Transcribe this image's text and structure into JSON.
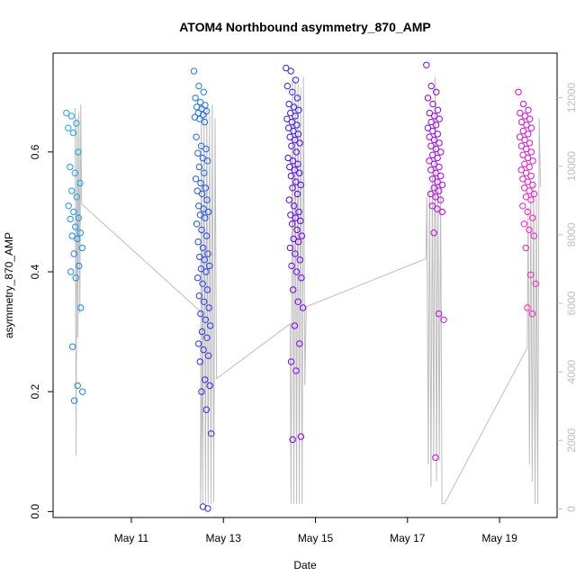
{
  "chart_data": {
    "type": "scatter",
    "title": "ATOM4 Northbound asymmetry_870_AMP",
    "xlabel": "Date",
    "ylabel": "asymmetry_870_AMP",
    "x_ticks": [
      "May 11",
      "May 13",
      "May 15",
      "May 17",
      "May 19"
    ],
    "x_tick_days": [
      11,
      13,
      15,
      17,
      19
    ],
    "xlim_days": [
      9.3,
      20.25
    ],
    "ylim": [
      -0.01,
      0.765
    ],
    "y_ticks": [
      0.0,
      0.2,
      0.4,
      0.6
    ],
    "y2_ticks": [
      0,
      2000,
      4000,
      6000,
      8000,
      10000,
      12000
    ],
    "y2lim": [
      -250,
      13300
    ],
    "colors": {
      "secondary_line": "#bdbdbd",
      "point_gradient": [
        "#1ba8ee",
        "#1c4fee",
        "#4d00ee",
        "#b400e8",
        "#ff20c0"
      ]
    },
    "series": [
      {
        "values": [
          {
            "date": "2024-05-09",
            "day": 9.78,
            "values": [
              0.665,
              0.66,
              0.648,
              0.64,
              0.632,
              0.6,
              0.575,
              0.565,
              0.548,
              0.535,
              0.525,
              0.51,
              0.5,
              0.49,
              0.488,
              0.475,
              0.465,
              0.46,
              0.455,
              0.44,
              0.43,
              0.41,
              0.4,
              0.39,
              0.34,
              0.275,
              0.21,
              0.2,
              0.185
            ]
          },
          {
            "date": "2024-05-12",
            "day": 12.55,
            "values": [
              0.735,
              0.71,
              0.7,
              0.69,
              0.683,
              0.678,
              0.675,
              0.672,
              0.668,
              0.665,
              0.662,
              0.658,
              0.655,
              0.65,
              0.625,
              0.61,
              0.605,
              0.598,
              0.59,
              0.585,
              0.575,
              0.565,
              0.555,
              0.548,
              0.54,
              0.535,
              0.53,
              0.52,
              0.51,
              0.505,
              0.5,
              0.495,
              0.49,
              0.48,
              0.47,
              0.46,
              0.45,
              0.44,
              0.43,
              0.425,
              0.42,
              0.41,
              0.405,
              0.4,
              0.39,
              0.38,
              0.37,
              0.36,
              0.35,
              0.34,
              0.33,
              0.32,
              0.31,
              0.3,
              0.29,
              0.28,
              0.27,
              0.26,
              0.25,
              0.22,
              0.21,
              0.2,
              0.17,
              0.13,
              0.008,
              0.005
            ]
          },
          {
            "date": "2024-05-14",
            "day": 14.55,
            "values": [
              0.74,
              0.735,
              0.72,
              0.71,
              0.7,
              0.69,
              0.68,
              0.675,
              0.67,
              0.665,
              0.66,
              0.655,
              0.65,
              0.645,
              0.64,
              0.635,
              0.63,
              0.625,
              0.62,
              0.615,
              0.61,
              0.6,
              0.59,
              0.585,
              0.58,
              0.575,
              0.57,
              0.565,
              0.56,
              0.55,
              0.545,
              0.54,
              0.53,
              0.52,
              0.51,
              0.5,
              0.495,
              0.49,
              0.485,
              0.48,
              0.47,
              0.46,
              0.455,
              0.45,
              0.44,
              0.43,
              0.42,
              0.41,
              0.4,
              0.39,
              0.37,
              0.35,
              0.34,
              0.31,
              0.28,
              0.25,
              0.235,
              0.125,
              0.12
            ]
          },
          {
            "date": "2024-05-17",
            "day": 17.6,
            "values": [
              0.745,
              0.71,
              0.7,
              0.69,
              0.68,
              0.67,
              0.665,
              0.66,
              0.655,
              0.65,
              0.645,
              0.64,
              0.635,
              0.63,
              0.625,
              0.62,
              0.615,
              0.61,
              0.605,
              0.6,
              0.595,
              0.59,
              0.585,
              0.58,
              0.575,
              0.57,
              0.565,
              0.56,
              0.555,
              0.55,
              0.545,
              0.54,
              0.535,
              0.53,
              0.525,
              0.52,
              0.51,
              0.505,
              0.5,
              0.465,
              0.33,
              0.32,
              0.09
            ]
          },
          {
            "date": "2024-05-19",
            "day": 19.6,
            "values": [
              0.7,
              0.68,
              0.67,
              0.665,
              0.66,
              0.655,
              0.65,
              0.645,
              0.64,
              0.635,
              0.63,
              0.625,
              0.62,
              0.615,
              0.61,
              0.605,
              0.6,
              0.595,
              0.59,
              0.585,
              0.58,
              0.575,
              0.57,
              0.565,
              0.56,
              0.555,
              0.55,
              0.545,
              0.54,
              0.535,
              0.53,
              0.525,
              0.52,
              0.51,
              0.5,
              0.49,
              0.48,
              0.47,
              0.46,
              0.44,
              0.395,
              0.38,
              0.34,
              0.33
            ]
          }
        ]
      }
    ],
    "secondary_series": {
      "axis": "right",
      "points": [
        {
          "day": 9.78,
          "value": 11700
        },
        {
          "day": 9.8,
          "value": 1550
        },
        {
          "day": 9.82,
          "value": 11400
        },
        {
          "day": 9.84,
          "value": 5000
        },
        {
          "day": 9.86,
          "value": 11600
        },
        {
          "day": 9.88,
          "value": 5700
        },
        {
          "day": 9.9,
          "value": 11800
        },
        {
          "day": 9.92,
          "value": 8900
        },
        {
          "day": 12.55,
          "value": 5700
        },
        {
          "day": 12.5,
          "value": 150
        },
        {
          "day": 12.52,
          "value": 11800
        },
        {
          "day": 12.55,
          "value": 150
        },
        {
          "day": 12.58,
          "value": 11600
        },
        {
          "day": 12.61,
          "value": 150
        },
        {
          "day": 12.64,
          "value": 11700
        },
        {
          "day": 12.67,
          "value": 150
        },
        {
          "day": 12.7,
          "value": 11500
        },
        {
          "day": 12.73,
          "value": 150
        },
        {
          "day": 12.76,
          "value": 11800
        },
        {
          "day": 12.79,
          "value": 200
        },
        {
          "day": 12.82,
          "value": 11400
        },
        {
          "day": 12.85,
          "value": 3800
        },
        {
          "day": 12.85,
          "value": 3800
        },
        {
          "day": 14.45,
          "value": 5400
        },
        {
          "day": 14.47,
          "value": 150
        },
        {
          "day": 14.5,
          "value": 12600
        },
        {
          "day": 14.53,
          "value": 150
        },
        {
          "day": 14.56,
          "value": 12500
        },
        {
          "day": 14.59,
          "value": 150
        },
        {
          "day": 14.62,
          "value": 12400
        },
        {
          "day": 14.65,
          "value": 150
        },
        {
          "day": 14.68,
          "value": 12300
        },
        {
          "day": 14.71,
          "value": 150
        },
        {
          "day": 14.74,
          "value": 12600
        },
        {
          "day": 14.77,
          "value": 3600
        },
        {
          "day": 14.8,
          "value": 5900
        },
        {
          "day": 14.8,
          "value": 5900
        },
        {
          "day": 17.4,
          "value": 7300
        },
        {
          "day": 17.42,
          "value": 9100
        },
        {
          "day": 17.45,
          "value": 1300
        },
        {
          "day": 17.48,
          "value": 9300
        },
        {
          "day": 17.51,
          "value": 650
        },
        {
          "day": 17.54,
          "value": 9700
        },
        {
          "day": 17.57,
          "value": 1500
        },
        {
          "day": 17.6,
          "value": 12600
        },
        {
          "day": 17.63,
          "value": 800
        },
        {
          "day": 17.66,
          "value": 9800
        },
        {
          "day": 17.69,
          "value": 1400
        },
        {
          "day": 17.72,
          "value": 9600
        },
        {
          "day": 17.75,
          "value": 150
        },
        {
          "day": 17.8,
          "value": 150
        },
        {
          "day": 19.6,
          "value": 4700
        },
        {
          "day": 19.62,
          "value": 8800
        },
        {
          "day": 19.65,
          "value": 1300
        },
        {
          "day": 19.68,
          "value": 9200
        },
        {
          "day": 19.71,
          "value": 800
        },
        {
          "day": 19.74,
          "value": 9500
        },
        {
          "day": 19.77,
          "value": 150
        },
        {
          "day": 19.8,
          "value": 9100
        },
        {
          "day": 19.83,
          "value": 150
        },
        {
          "day": 19.86,
          "value": 11400
        },
        {
          "day": 19.89,
          "value": 9400
        }
      ]
    },
    "grid": false,
    "legend": "none"
  }
}
